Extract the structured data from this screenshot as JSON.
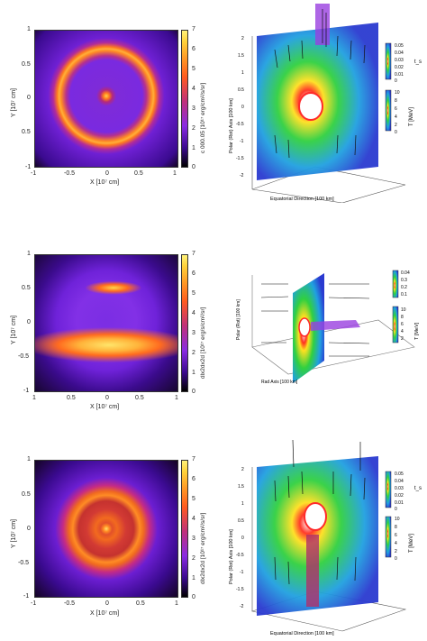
{
  "figure": {
    "rows": [
      {
        "map": {
          "yticks": [
            "1",
            "0.5",
            "0",
            "0.5",
            "-1"
          ],
          "xticks": [
            "-1",
            "-0.5",
            "0",
            "0.5",
            "1"
          ],
          "ylabel": "Y [10⁷ cm]",
          "xlabel": "X [10⁷ cm]",
          "cbar_ticks": [
            "7",
            "6",
            "5",
            "4",
            "3",
            "2",
            "1",
            "0"
          ],
          "cbar_label": "c 000.05 [10¹⁷ erg/cm²/s/sr]"
        },
        "p3d": {
          "zticks": [
            "2",
            "1.5",
            "1",
            "0.5",
            "0",
            "-0.5",
            "-1",
            "-1.5",
            "-2"
          ],
          "zlabel": "Polar (Rot) Axis [100 km]",
          "xlabel": "Equatorial Direction [100 km]",
          "cb_top_ticks": [
            "0.05",
            "0.04",
            "0.03",
            "0.02",
            "0.01",
            "0"
          ],
          "cb_top_label": "t_s",
          "cb_bot_ticks": [
            "10",
            "8",
            "6",
            "4",
            "2",
            "0"
          ],
          "cb_bot_label": "T [MeV]",
          "color_hot": "#ff3030",
          "color_plane_mid": "#20d040"
        }
      },
      {
        "map": {
          "yticks": [
            "1",
            "0.5",
            "0",
            "-0.5",
            "-1"
          ],
          "xticks": [
            "1",
            "0.5",
            "0",
            "0.5",
            "1"
          ],
          "ylabel": "Y [10⁷ cm]",
          "xlabel": "X [10⁷ cm]",
          "cbar_ticks": [
            "7",
            "6",
            "5",
            "4",
            "3",
            "2",
            "1",
            "0"
          ],
          "cbar_label": "dlx2dx2d [10¹⁷ erg/s/cm²/sr]"
        },
        "p3d": {
          "zlabel": "Polar (Rot) [100 km]",
          "xlabel": "Rad Axis [100 km]",
          "cb_top_ticks": [
            "0.04",
            "0.3",
            "0.2",
            "0.1"
          ],
          "cb_bot_ticks": [
            "10",
            "8",
            "6",
            "4",
            "2"
          ],
          "cb_bot_label": "T [MeV]"
        }
      },
      {
        "map": {
          "yticks": [
            "1",
            "0.5",
            "0",
            "-0.5",
            "-1"
          ],
          "xticks": [
            "-1",
            "-0.5",
            "0",
            "0.5",
            "1"
          ],
          "ylabel": "Y [10⁷ cm]",
          "xlabel": "X [10⁷ cm]",
          "cbar_ticks": [
            "7",
            "6",
            "5",
            "4",
            "3",
            "2",
            "1",
            "0"
          ],
          "cbar_label": "dlx2dx2d [10¹⁷ erg/cm²/s/sr]"
        },
        "p3d": {
          "zticks": [
            "2",
            "1.5",
            "1",
            "0.5",
            "0",
            "-0.5",
            "-1",
            "-1.5",
            "-2"
          ],
          "zlabel": "Polar (Rot) Axis [100 km]",
          "xlabel": "Equatorial Direction [100 km]",
          "cb_top_ticks": [
            "0.05",
            "0.04",
            "0.03",
            "0.02",
            "0.01",
            "0"
          ],
          "cb_top_label": "t_s",
          "cb_bot_ticks": [
            "10",
            "8",
            "6",
            "4",
            "2",
            "0"
          ],
          "cb_bot_label": "T [MeV]"
        }
      }
    ]
  }
}
